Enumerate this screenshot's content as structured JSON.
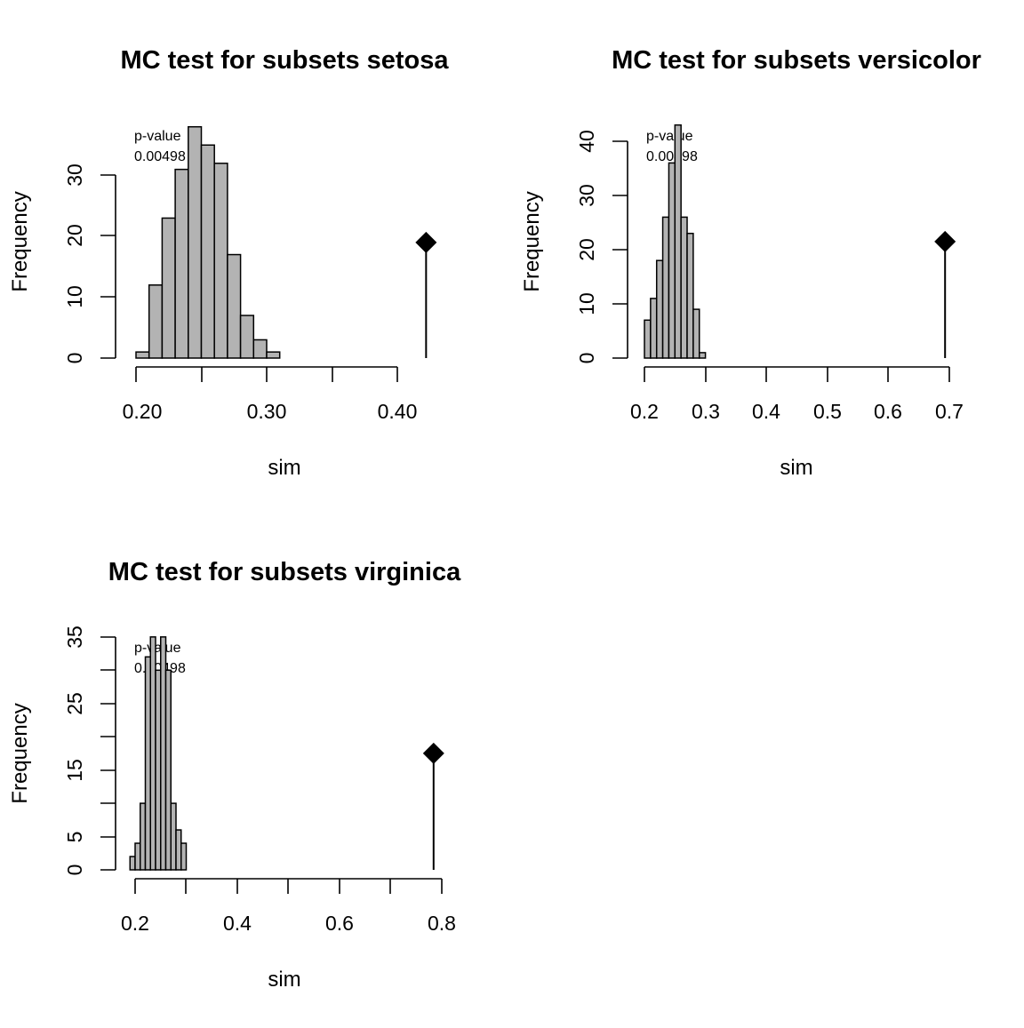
{
  "chart_data": [
    {
      "type": "bar",
      "title": "MC test for subsets setosa",
      "xlabel": "sim",
      "ylabel": "Frequency",
      "xlim": [
        0.2,
        0.42
      ],
      "ylim": [
        0,
        38
      ],
      "x_ticks": [
        "0.20",
        "0.30",
        "0.40"
      ],
      "y_ticks": [
        "0",
        "10",
        "20",
        "30"
      ],
      "bin_edges": [
        0.2,
        0.21,
        0.22,
        0.23,
        0.24,
        0.25,
        0.26,
        0.27,
        0.28,
        0.29,
        0.3,
        0.31
      ],
      "values": [
        1,
        12,
        23,
        31,
        38,
        35,
        32,
        17,
        7,
        3,
        1
      ],
      "observed": {
        "x": 0.422,
        "height": 19
      },
      "annotation": {
        "label": "p-value",
        "value": "0.00498"
      }
    },
    {
      "type": "bar",
      "title": "MC test for subsets versicolor",
      "xlabel": "sim",
      "ylabel": "Frequency",
      "xlim": [
        0.2,
        0.7
      ],
      "ylim": [
        0,
        43
      ],
      "x_ticks": [
        "0.2",
        "0.3",
        "0.4",
        "0.5",
        "0.6",
        "0.7"
      ],
      "y_ticks": [
        "0",
        "10",
        "20",
        "30",
        "40"
      ],
      "bin_edges": [
        0.2,
        0.21,
        0.22,
        0.23,
        0.24,
        0.25,
        0.26,
        0.27,
        0.28,
        0.29,
        0.3
      ],
      "values": [
        7,
        11,
        18,
        26,
        36,
        43,
        26,
        23,
        9,
        1
      ],
      "observed": {
        "x": 0.693,
        "height": 21.5
      },
      "annotation": {
        "label": "p-value",
        "value": "0.00498"
      }
    },
    {
      "type": "bar",
      "title": "MC test for subsets virginica",
      "xlabel": "sim",
      "ylabel": "Frequency",
      "xlim": [
        0.2,
        0.8
      ],
      "ylim": [
        0,
        35
      ],
      "x_ticks": [
        "0.2",
        "0.4",
        "0.6",
        "0.8"
      ],
      "y_ticks": [
        "0",
        "5",
        "15",
        "25",
        "35"
      ],
      "y_minor_ticks": [
        10,
        20,
        30
      ],
      "bin_edges": [
        0.19,
        0.2,
        0.21,
        0.22,
        0.23,
        0.24,
        0.25,
        0.26,
        0.27,
        0.28,
        0.29,
        0.3
      ],
      "values": [
        2,
        4,
        10,
        32,
        35,
        30,
        35,
        30,
        10,
        6,
        4
      ],
      "observed": {
        "x": 0.784,
        "height": 17.5
      },
      "annotation": {
        "label": "p-value",
        "value": "0.00498"
      }
    }
  ],
  "colors": {
    "bar_fill": "#b3b3b3",
    "stroke": "#000000"
  }
}
